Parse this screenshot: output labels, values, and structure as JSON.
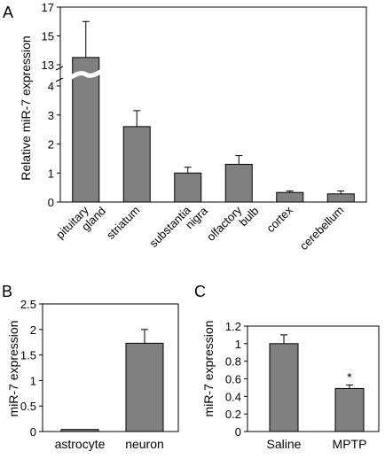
{
  "colors": {
    "bar_fill": "#808080",
    "bar_stroke": "#000000",
    "background": "#ffffff"
  },
  "chart_data": [
    {
      "panel": "A",
      "type": "bar",
      "title": "",
      "xlabel": "",
      "ylabel": "Relative miR-7 expression",
      "axis_break": {
        "lower": [
          0,
          4
        ],
        "upper": [
          13,
          17
        ]
      },
      "y_ticks": [
        "0",
        "1",
        "2",
        "3",
        "4",
        "13",
        "15",
        "17"
      ],
      "categories": [
        [
          "pituitary",
          "gland"
        ],
        [
          "striatum"
        ],
        [
          "substantia",
          "nigra"
        ],
        [
          "olfactory",
          "bulb"
        ],
        [
          "cortex"
        ],
        [
          "cerebellum"
        ]
      ],
      "values": [
        13.5,
        2.6,
        1.0,
        1.3,
        0.33,
        0.28
      ],
      "errors": [
        2.5,
        0.55,
        0.2,
        0.3,
        0.05,
        0.1
      ],
      "grid": false,
      "legend": "none"
    },
    {
      "panel": "B",
      "type": "bar",
      "title": "",
      "xlabel": "",
      "ylabel": "miR-7 expression",
      "ylim": [
        0,
        2.5
      ],
      "y_ticks": [
        "0",
        "0.5",
        "1",
        "1.5",
        "2",
        "2.5"
      ],
      "categories": [
        "astrocyte",
        "neuron"
      ],
      "values": [
        0.04,
        1.73
      ],
      "errors": [
        0,
        0.27
      ],
      "grid": false,
      "legend": "none"
    },
    {
      "panel": "C",
      "type": "bar",
      "title": "",
      "xlabel": "",
      "ylabel": "miR-7 expression",
      "ylim": [
        0,
        1.2
      ],
      "y_ticks": [
        "0",
        "0.2",
        "0.4",
        "0.6",
        "0.8",
        "1",
        "1.2"
      ],
      "categories": [
        "Saline",
        "MPTP"
      ],
      "values": [
        1.0,
        0.49
      ],
      "errors": [
        0.1,
        0.04
      ],
      "annotations": [
        "",
        "*"
      ],
      "grid": false,
      "legend": "none"
    }
  ]
}
